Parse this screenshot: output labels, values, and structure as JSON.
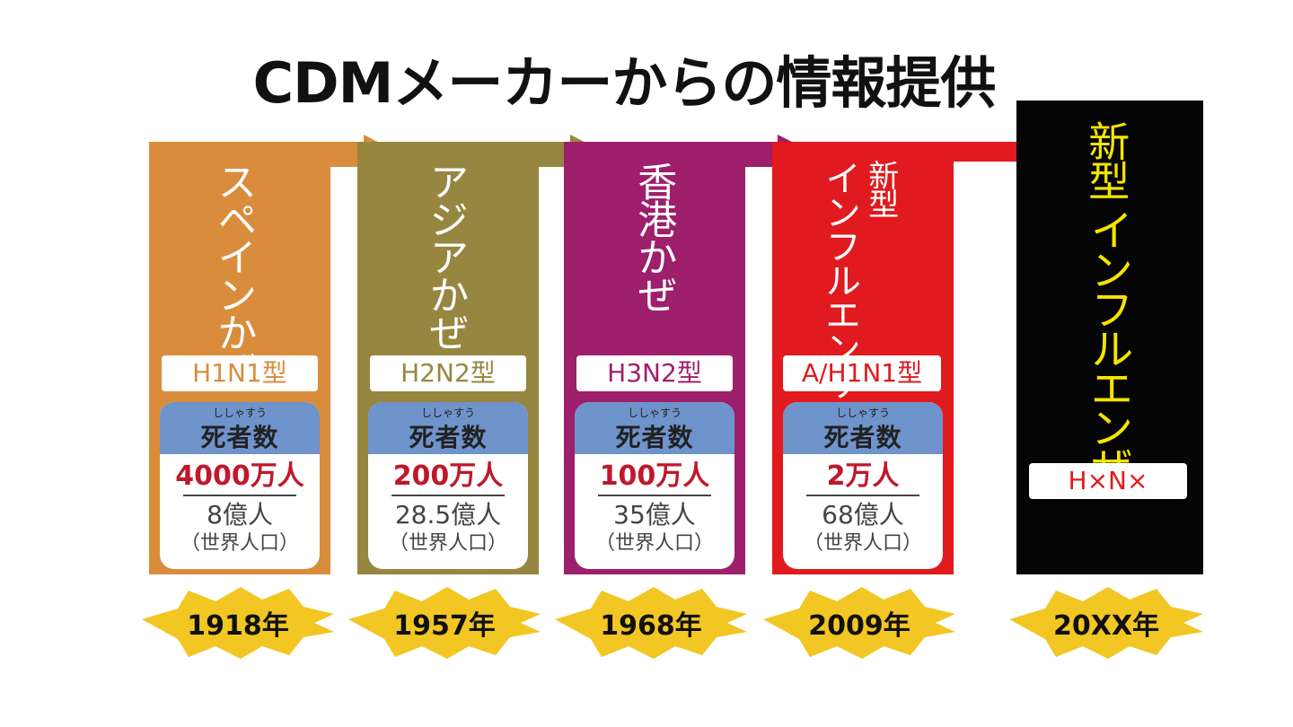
{
  "title": "CDMメーカーからの情報提供",
  "colors": {
    "spanish": "#d98d3c",
    "asian": "#968640",
    "hongkong": "#9e1f6b",
    "novel": "#e01a1e",
    "future": "#050505",
    "future_text": "#f4e400",
    "starburst": "#f2c623",
    "card_head": "#6f93cb",
    "deaths_red": "#c0182a"
  },
  "pandemics": [
    {
      "name": "スペインかぜ",
      "subtype": "H1N1型",
      "deaths_ruby": "ししゃすう",
      "deaths_label": "死者数",
      "deaths": "4000万人",
      "population": "8億人",
      "population_label": "（世界人口）",
      "year": "1918年"
    },
    {
      "name": "アジアかぜ",
      "subtype": "H2N2型",
      "deaths_ruby": "ししゃすう",
      "deaths_label": "死者数",
      "deaths": "200万人",
      "population": "28.5億人",
      "population_label": "（世界人口）",
      "year": "1957年"
    },
    {
      "name": "香港かぜ",
      "subtype": "H3N2型",
      "deaths_ruby": "ししゃすう",
      "deaths_label": "死者数",
      "deaths": "100万人",
      "population": "35億人",
      "population_label": "（世界人口）",
      "year": "1968年"
    },
    {
      "name_line1": "新型",
      "name_line2": "インフルエンザ",
      "subtype": "A/H1N1型",
      "deaths_ruby": "ししゃすう",
      "deaths_label": "死者数",
      "deaths": "2万人",
      "population": "68億人",
      "population_label": "（世界人口）",
      "year": "2009年"
    },
    {
      "name_line1": "新型",
      "name_line2": "インフルエンザ",
      "subtype": "H×N×",
      "year": "20XX年"
    }
  ]
}
